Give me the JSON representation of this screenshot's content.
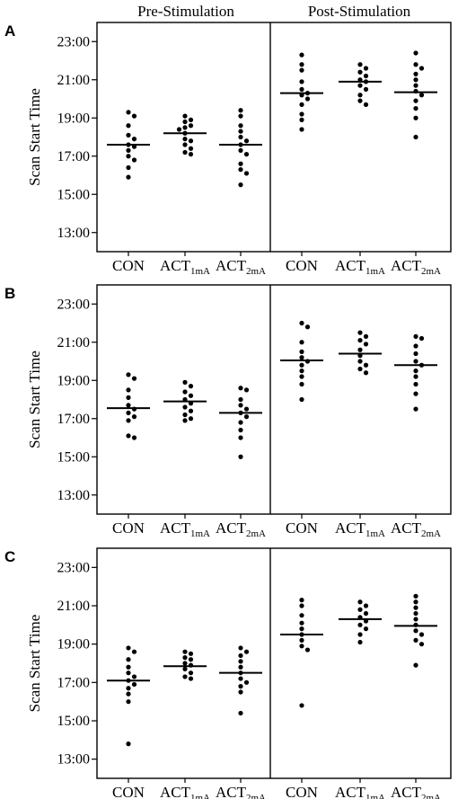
{
  "header": {
    "pre_label": "Pre-Stimulation",
    "post_label": "Post-Stimulation"
  },
  "chart_data": [
    {
      "type": "scatter",
      "panel": "A",
      "ylabel": "Scan Start Time",
      "ylim": [
        "12:00",
        "24:00"
      ],
      "yticks": [
        "13:00",
        "15:00",
        "17:00",
        "19:00",
        "21:00",
        "23:00"
      ],
      "groups": [
        {
          "phase": "Pre-Stimulation",
          "name": "CON",
          "sub": "",
          "mean": 17.6,
          "points": [
            19.3,
            19.1,
            18.6,
            18.1,
            17.9,
            17.6,
            17.5,
            17.3,
            17.0,
            16.8,
            16.4,
            15.9
          ]
        },
        {
          "phase": "Pre-Stimulation",
          "name": "ACT",
          "sub": "1mA",
          "mean": 18.2,
          "points": [
            19.1,
            18.9,
            18.8,
            18.6,
            18.5,
            18.4,
            18.2,
            17.9,
            17.8,
            17.6,
            17.4,
            17.2,
            17.1
          ]
        },
        {
          "phase": "Pre-Stimulation",
          "name": "ACT",
          "sub": "2mA",
          "mean": 17.6,
          "points": [
            19.4,
            19.1,
            18.6,
            18.3,
            18.0,
            17.8,
            17.6,
            17.3,
            17.1,
            16.6,
            16.3,
            16.1,
            15.5
          ]
        },
        {
          "phase": "Post-Stimulation",
          "name": "CON",
          "sub": "",
          "mean": 20.3,
          "points": [
            22.3,
            21.8,
            21.5,
            20.9,
            20.5,
            20.3,
            20.2,
            20.0,
            19.7,
            19.2,
            18.9,
            18.4
          ]
        },
        {
          "phase": "Post-Stimulation",
          "name": "ACT",
          "sub": "1mA",
          "mean": 20.9,
          "points": [
            21.8,
            21.6,
            21.4,
            21.2,
            21.0,
            20.9,
            20.7,
            20.5,
            20.2,
            19.9,
            19.7
          ]
        },
        {
          "phase": "Post-Stimulation",
          "name": "ACT",
          "sub": "2mA",
          "mean": 20.35,
          "points": [
            22.4,
            21.8,
            21.6,
            21.3,
            21.0,
            20.7,
            20.4,
            20.2,
            19.9,
            19.5,
            19.0,
            18.0
          ]
        }
      ]
    },
    {
      "type": "scatter",
      "panel": "B",
      "ylabel": "Scan Start Time",
      "ylim": [
        "12:00",
        "24:00"
      ],
      "yticks": [
        "13:00",
        "15:00",
        "17:00",
        "19:00",
        "21:00",
        "23:00"
      ],
      "groups": [
        {
          "phase": "Pre-Stimulation",
          "name": "CON",
          "sub": "",
          "mean": 17.55,
          "points": [
            19.3,
            19.1,
            18.5,
            18.1,
            17.7,
            17.5,
            17.3,
            17.1,
            16.9,
            16.1,
            16.0
          ]
        },
        {
          "phase": "Pre-Stimulation",
          "name": "ACT",
          "sub": "1mA",
          "mean": 17.9,
          "points": [
            18.9,
            18.7,
            18.4,
            18.2,
            18.0,
            17.8,
            17.6,
            17.4,
            17.2,
            17.0,
            16.9
          ]
        },
        {
          "phase": "Pre-Stimulation",
          "name": "ACT",
          "sub": "2mA",
          "mean": 17.3,
          "points": [
            18.6,
            18.5,
            18.0,
            17.7,
            17.5,
            17.3,
            17.1,
            16.8,
            16.4,
            16.0,
            15.0
          ]
        },
        {
          "phase": "Post-Stimulation",
          "name": "CON",
          "sub": "",
          "mean": 20.05,
          "points": [
            22.0,
            21.8,
            21.0,
            20.5,
            20.2,
            20.0,
            19.8,
            19.5,
            19.2,
            18.8,
            18.0
          ]
        },
        {
          "phase": "Post-Stimulation",
          "name": "ACT",
          "sub": "1mA",
          "mean": 20.4,
          "points": [
            21.5,
            21.3,
            21.1,
            20.9,
            20.6,
            20.3,
            20.0,
            19.8,
            19.6,
            19.4
          ]
        },
        {
          "phase": "Post-Stimulation",
          "name": "ACT",
          "sub": "2mA",
          "mean": 19.8,
          "points": [
            21.3,
            21.2,
            20.8,
            20.4,
            20.0,
            19.8,
            19.5,
            19.2,
            18.8,
            18.3,
            17.5
          ]
        }
      ]
    },
    {
      "type": "scatter",
      "panel": "C",
      "ylabel": "Scan Start Time",
      "ylim": [
        "12:00",
        "24:00"
      ],
      "yticks": [
        "13:00",
        "15:00",
        "17:00",
        "19:00",
        "21:00",
        "23:00"
      ],
      "groups": [
        {
          "phase": "Pre-Stimulation",
          "name": "CON",
          "sub": "",
          "mean": 17.1,
          "points": [
            18.8,
            18.6,
            18.2,
            17.8,
            17.5,
            17.3,
            17.1,
            16.9,
            16.7,
            16.4,
            16.0,
            13.8
          ]
        },
        {
          "phase": "Pre-Stimulation",
          "name": "ACT",
          "sub": "1mA",
          "mean": 17.85,
          "points": [
            18.6,
            18.5,
            18.3,
            18.2,
            18.0,
            17.9,
            17.7,
            17.5,
            17.3,
            17.2
          ]
        },
        {
          "phase": "Pre-Stimulation",
          "name": "ACT",
          "sub": "2mA",
          "mean": 17.5,
          "points": [
            18.8,
            18.6,
            18.4,
            18.1,
            17.8,
            17.5,
            17.2,
            17.0,
            16.8,
            16.5,
            15.4
          ]
        },
        {
          "phase": "Post-Stimulation",
          "name": "CON",
          "sub": "",
          "mean": 19.5,
          "points": [
            21.3,
            21.0,
            20.5,
            20.1,
            19.8,
            19.5,
            19.2,
            18.9,
            18.7,
            15.8
          ]
        },
        {
          "phase": "Post-Stimulation",
          "name": "ACT",
          "sub": "1mA",
          "mean": 20.3,
          "points": [
            21.2,
            21.0,
            20.8,
            20.6,
            20.4,
            20.2,
            20.0,
            19.8,
            19.5,
            19.1
          ]
        },
        {
          "phase": "Post-Stimulation",
          "name": "ACT",
          "sub": "2mA",
          "mean": 19.95,
          "points": [
            21.5,
            21.2,
            20.9,
            20.6,
            20.3,
            20.0,
            19.7,
            19.5,
            19.2,
            19.0,
            17.9
          ]
        }
      ]
    }
  ]
}
